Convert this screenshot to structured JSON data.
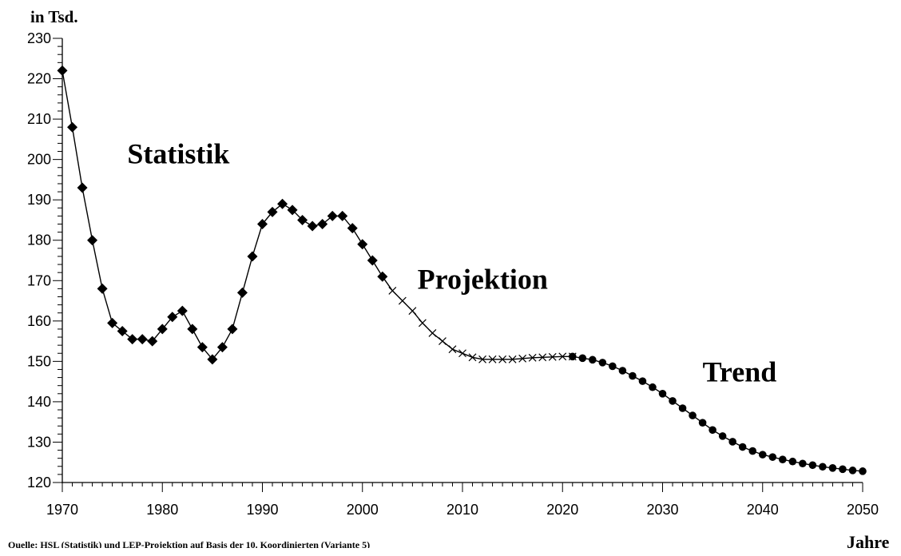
{
  "chart_data": {
    "type": "line",
    "ylabel": "in   Tsd.",
    "xlabel": "Jahre",
    "source": "Quelle: HSL (Statistik)  und LEP-Projektion auf Basis der 10. Koordinierten  (Variante 5)",
    "xlim": [
      1970,
      2050
    ],
    "ylim": [
      120,
      230
    ],
    "x_ticks": [
      1970,
      1980,
      1990,
      2000,
      2010,
      2020,
      2030,
      2040,
      2050
    ],
    "y_ticks": [
      120,
      130,
      140,
      150,
      160,
      170,
      180,
      190,
      200,
      210,
      220,
      230
    ],
    "grid": false,
    "annotations": [
      {
        "text": "Statistik",
        "x": 1976.5,
        "y": 199
      },
      {
        "text": "Projektion",
        "x": 2005.5,
        "y": 168
      },
      {
        "text": "Trend",
        "x": 2034,
        "y": 145
      }
    ],
    "series": [
      {
        "name": "Statistik",
        "marker": "diamond",
        "x": [
          1970,
          1971,
          1972,
          1973,
          1974,
          1975,
          1976,
          1977,
          1978,
          1979,
          1980,
          1981,
          1982,
          1983,
          1984,
          1985,
          1986,
          1987,
          1988,
          1989,
          1990,
          1991,
          1992,
          1993,
          1994,
          1995,
          1996,
          1997,
          1998,
          1999,
          2000,
          2001,
          2002
        ],
        "values": [
          222,
          208,
          193,
          180,
          168,
          159.5,
          157.5,
          155.5,
          155.5,
          155,
          158,
          161,
          162.5,
          158,
          153.5,
          150.5,
          153.5,
          158,
          167,
          176,
          184,
          187,
          189,
          187.5,
          185,
          183.5,
          184,
          186,
          186,
          183,
          179,
          175,
          171
        ]
      },
      {
        "name": "Projektion",
        "marker": "x",
        "x": [
          2003,
          2004,
          2005,
          2006,
          2007,
          2008,
          2009,
          2010,
          2011,
          2012,
          2013,
          2014,
          2015,
          2016,
          2017,
          2018,
          2019,
          2020,
          2021
        ],
        "values": [
          167.5,
          165,
          162.5,
          159.5,
          157,
          155,
          153,
          152,
          151,
          150.5,
          150.5,
          150.5,
          150.5,
          150.7,
          150.9,
          151,
          151.1,
          151.2,
          151.2
        ]
      },
      {
        "name": "Trend",
        "marker": "circle",
        "x": [
          2021,
          2022,
          2023,
          2024,
          2025,
          2026,
          2027,
          2028,
          2029,
          2030,
          2031,
          2032,
          2033,
          2034,
          2035,
          2036,
          2037,
          2038,
          2039,
          2040,
          2041,
          2042,
          2043,
          2044,
          2045,
          2046,
          2047,
          2048,
          2049,
          2050
        ],
        "values": [
          151.2,
          150.8,
          150.4,
          149.7,
          148.8,
          147.7,
          146.4,
          145.1,
          143.6,
          142,
          140.2,
          138.4,
          136.6,
          134.8,
          133,
          131.5,
          130.1,
          128.8,
          127.8,
          126.9,
          126.3,
          125.7,
          125.2,
          124.7,
          124.3,
          123.9,
          123.6,
          123.3,
          123,
          122.8
        ]
      }
    ]
  }
}
